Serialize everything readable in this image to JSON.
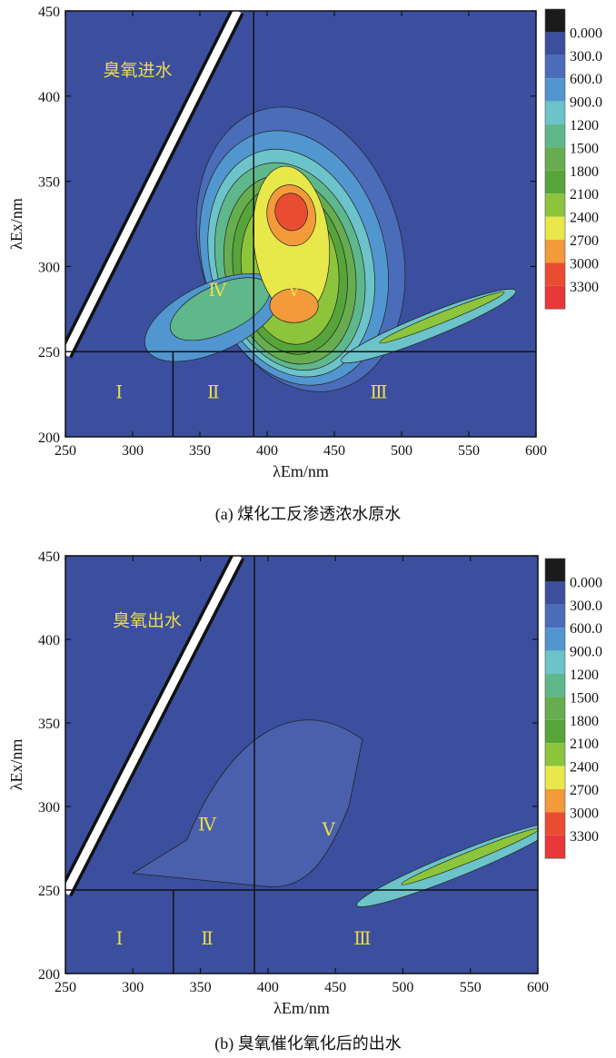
{
  "chart_data": [
    {
      "type": "heatmap",
      "title": "",
      "sample_label": "臭氧进水",
      "caption": "(a) 煤化工反渗透浓水原水",
      "xlabel": "λEm/nm",
      "ylabel": "λEx/nm",
      "xlim": [
        250,
        600
      ],
      "ylim": [
        200,
        450
      ],
      "x_ticks": [
        250,
        300,
        350,
        400,
        450,
        500,
        550,
        600
      ],
      "y_ticks": [
        200,
        250,
        300,
        350,
        400,
        450
      ],
      "region_lines": {
        "vertical_full": 390,
        "vertical_lower": 330,
        "horizontal": 250
      },
      "regions": [
        {
          "label": "Ⅰ",
          "x": 290,
          "y": 225
        },
        {
          "label": "Ⅱ",
          "x": 360,
          "y": 225
        },
        {
          "label": "Ⅲ",
          "x": 483,
          "y": 225
        },
        {
          "label": "Ⅳ",
          "x": 363,
          "y": 285
        },
        {
          "label": "Ⅴ",
          "x": 420,
          "y": 285
        }
      ],
      "peaks": [
        {
          "x": 418,
          "y": 330,
          "intensity": 3300
        },
        {
          "x": 420,
          "y": 277,
          "intensity": 3000
        }
      ],
      "colorbar": {
        "levels": [
          "0.000",
          "300.0",
          "600.0",
          "900.0",
          "1200",
          "1500",
          "1800",
          "2100",
          "2400",
          "2700",
          "3000",
          "3300"
        ],
        "colors": [
          "#1b1b1b",
          "#3b4f9e",
          "#4b6cb8",
          "#5196cf",
          "#6cc3c9",
          "#5fb78c",
          "#67ad4f",
          "#56a43a",
          "#8cc43c",
          "#e9e84a",
          "#f39a3a",
          "#e84d31",
          "#e8383a"
        ]
      }
    },
    {
      "type": "heatmap",
      "title": "",
      "sample_label": "臭氧出水",
      "caption": "(b) 臭氧催化氧化后的出水",
      "xlabel": "λEm/nm",
      "ylabel": "λEx/nm",
      "xlim": [
        250,
        600
      ],
      "ylim": [
        200,
        450
      ],
      "x_ticks": [
        250,
        300,
        350,
        400,
        450,
        500,
        550,
        600
      ],
      "y_ticks": [
        200,
        250,
        300,
        350,
        400,
        450
      ],
      "region_lines": {
        "vertical_full": 390,
        "vertical_lower": 330,
        "horizontal": 250
      },
      "regions": [
        {
          "label": "Ⅰ",
          "x": 290,
          "y": 220
        },
        {
          "label": "Ⅱ",
          "x": 355,
          "y": 220
        },
        {
          "label": "Ⅲ",
          "x": 470,
          "y": 220
        },
        {
          "label": "Ⅳ",
          "x": 355,
          "y": 288
        },
        {
          "label": "Ⅴ",
          "x": 445,
          "y": 285
        }
      ],
      "peaks": [],
      "colorbar": {
        "levels": [
          "0.000",
          "300.0",
          "600.0",
          "900.0",
          "1200",
          "1500",
          "1800",
          "2100",
          "2400",
          "2700",
          "3000",
          "3300"
        ],
        "colors": [
          "#1b1b1b",
          "#3b4f9e",
          "#4b6cb8",
          "#5196cf",
          "#6cc3c9",
          "#5fb78c",
          "#67ad4f",
          "#56a43a",
          "#8cc43c",
          "#e9e84a",
          "#f39a3a",
          "#e84d31",
          "#e8383a"
        ]
      }
    }
  ]
}
